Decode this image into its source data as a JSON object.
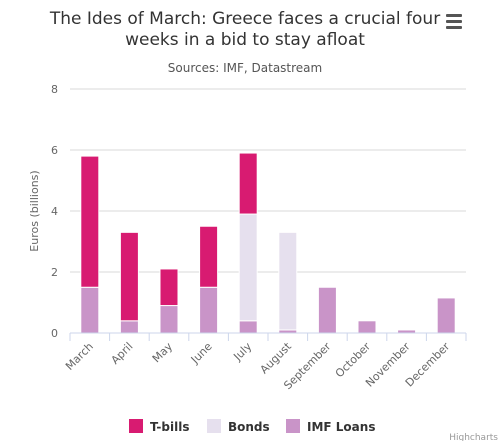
{
  "chart_data": {
    "type": "bar",
    "stacked": true,
    "title_lines": [
      "The Ides of March: Greece faces a crucial four",
      "weeks in a bid to stay afloat"
    ],
    "subtitle": "Sources: IMF, Datastream",
    "ylabel": "Euros (billions)",
    "xlabel": "",
    "ylim": [
      0,
      8
    ],
    "yticks": [
      0,
      2,
      4,
      6,
      8
    ],
    "grid": true,
    "legend_position": "bottom",
    "categories": [
      "March",
      "April",
      "May",
      "June",
      "July",
      "August",
      "September",
      "October",
      "November",
      "December"
    ],
    "series": [
      {
        "name": "T-bills",
        "color": "#d81b71",
        "values": [
          4.3,
          2.9,
          1.2,
          2.0,
          2.0,
          0,
          0,
          0,
          0,
          0
        ]
      },
      {
        "name": "Bonds",
        "color": "#e6e0ee",
        "values": [
          0,
          0,
          0,
          0,
          3.5,
          3.2,
          0,
          0,
          0,
          0
        ]
      },
      {
        "name": "IMF Loans",
        "color": "#c994c8",
        "values": [
          1.5,
          0.4,
          0.9,
          1.5,
          0.4,
          0.1,
          1.5,
          0.4,
          0.1,
          1.15
        ]
      }
    ]
  },
  "ui": {
    "menu_icon": "hamburger-menu-icon",
    "credits": "Highcharts"
  }
}
